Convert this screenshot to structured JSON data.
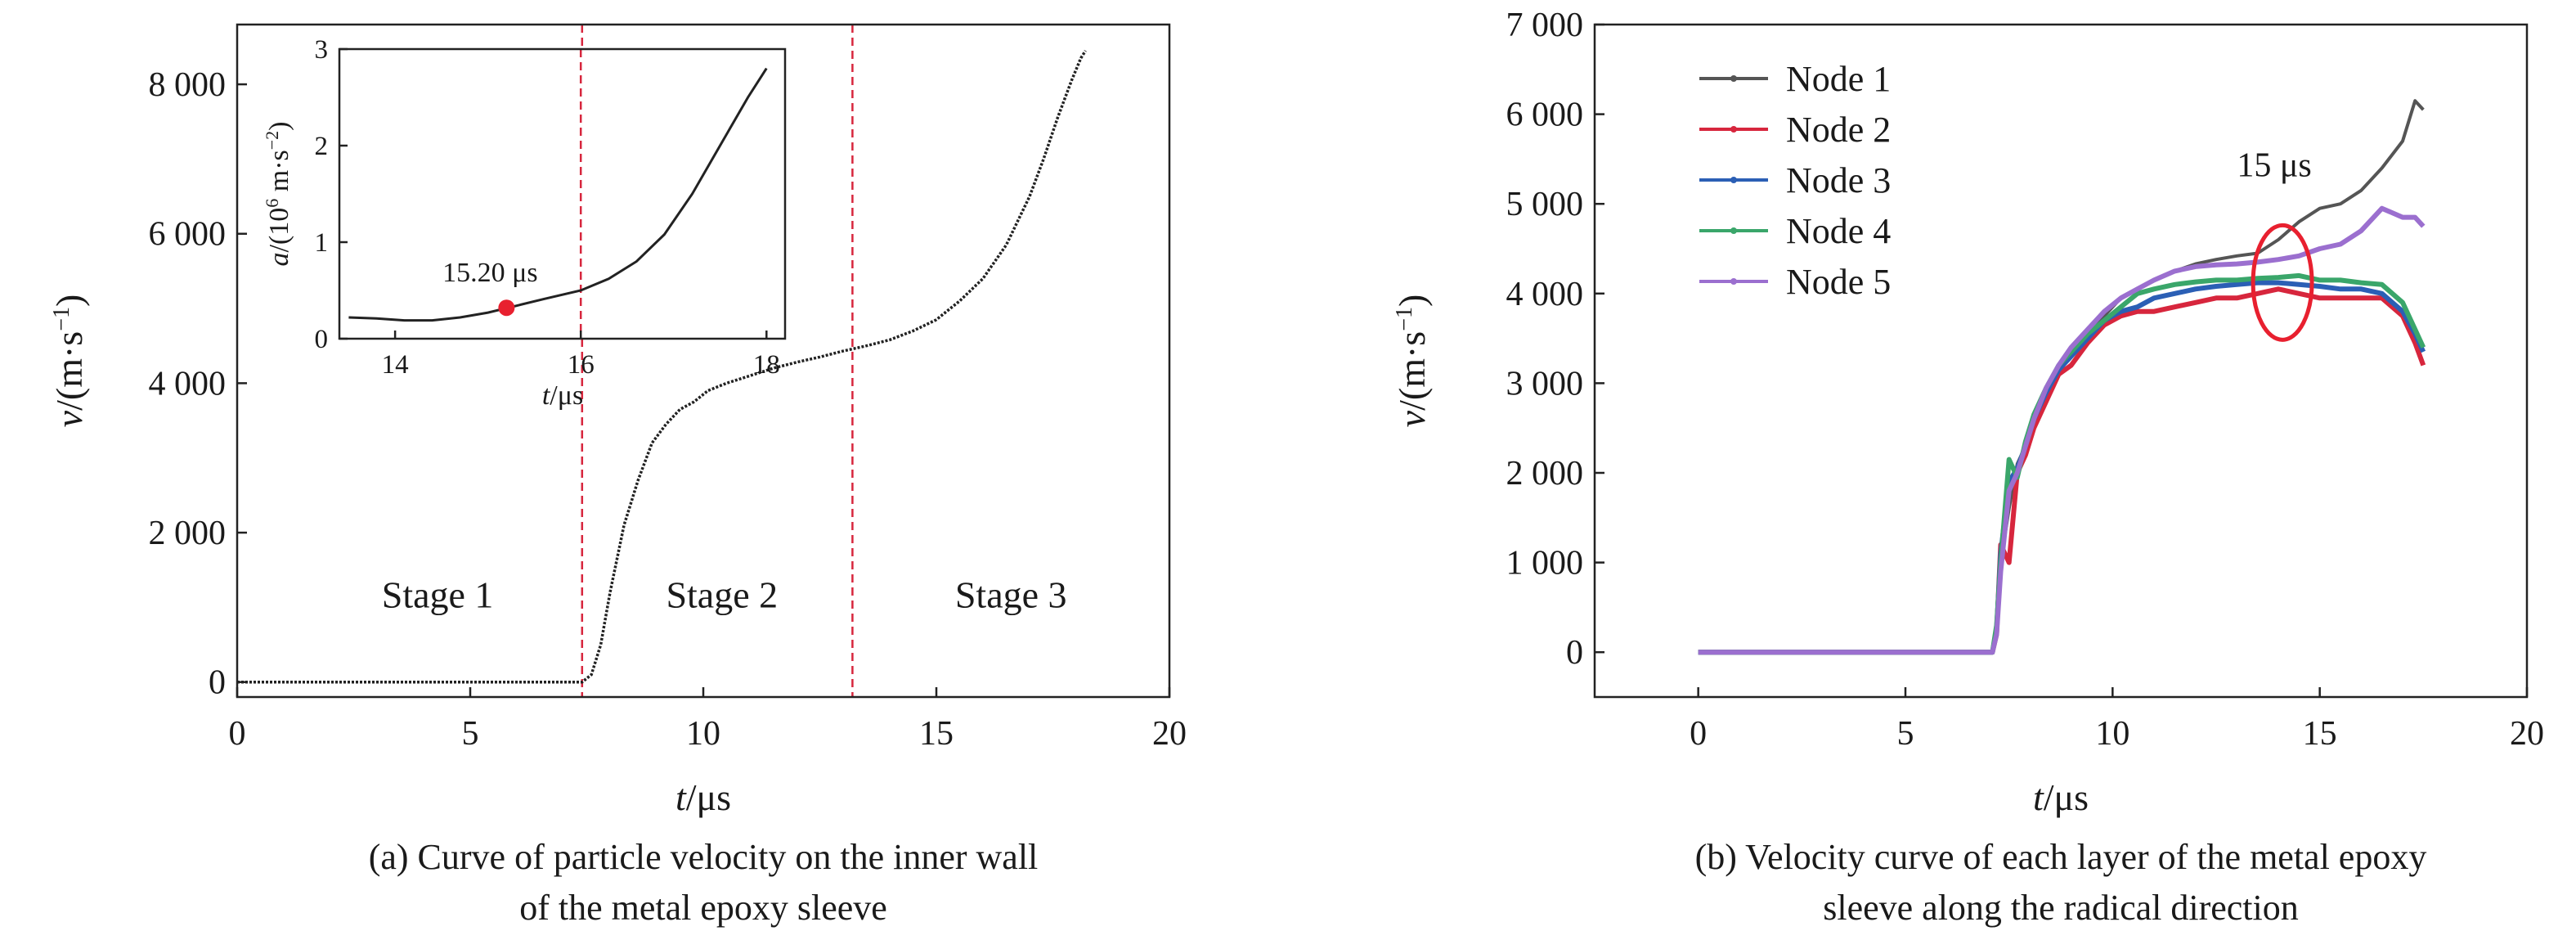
{
  "chart_data": [
    {
      "type": "line",
      "xlabel_italic": "t",
      "xlabel_unit": "/μs",
      "ylabel_italic": "v",
      "ylabel_unit": "/(m·s",
      "ylabel_sup": "−1",
      "ylabel_close": ")",
      "xlim": [
        0,
        20
      ],
      "ylim": [
        -200,
        8800
      ],
      "xticks": [
        0,
        5,
        10,
        15,
        20
      ],
      "xtick_labels": [
        "0",
        "5",
        "10",
        "15",
        "20"
      ],
      "yticks": [
        0,
        2000,
        4000,
        6000,
        8000
      ],
      "ytick_labels": [
        "0",
        "2 000",
        "4 000",
        "6 000",
        "8 000"
      ],
      "vlines": [
        7.4,
        13.2
      ],
      "stages": [
        {
          "label": "Stage 1",
          "x": 4.3,
          "y": 1000
        },
        {
          "label": "Stage 2",
          "x": 10.4,
          "y": 1000
        },
        {
          "label": "Stage 3",
          "x": 16.6,
          "y": 1000
        }
      ],
      "series": [
        {
          "color": "#222222",
          "x": [
            0,
            7.4,
            7.6,
            7.8,
            8.0,
            8.3,
            8.6,
            8.9,
            9.2,
            9.5,
            9.8,
            10.1,
            10.5,
            11.0,
            11.5,
            12.0,
            12.5,
            13.0,
            13.5,
            14.0,
            14.5,
            15.0,
            15.5,
            16.0,
            16.5,
            17.0,
            17.3,
            17.6,
            17.9,
            18.1,
            18.2
          ],
          "y": [
            0,
            0,
            100,
            500,
            1200,
            2100,
            2700,
            3200,
            3450,
            3650,
            3750,
            3900,
            4000,
            4100,
            4200,
            4280,
            4350,
            4430,
            4500,
            4580,
            4700,
            4850,
            5100,
            5400,
            5850,
            6500,
            7000,
            7550,
            8050,
            8350,
            8450
          ]
        }
      ],
      "caption": [
        "(a) Curve of particle velocity on the inner wall",
        "of the metal epoxy sleeve"
      ],
      "inset": {
        "xlabel_italic": "t",
        "xlabel_unit": "/μs",
        "ylabel_italic": "a",
        "ylabel_unit": "/(10",
        "ylabel_sup1": "6",
        "ylabel_mid": " m·s",
        "ylabel_sup2": "−2",
        "ylabel_close": ")",
        "xlim": [
          13.4,
          18.2
        ],
        "ylim": [
          0,
          3
        ],
        "xticks": [
          14,
          16,
          18
        ],
        "xtick_labels": [
          "14",
          "16",
          "18"
        ],
        "yticks": [
          0,
          1,
          2,
          3
        ],
        "ytick_labels": [
          "0",
          "1",
          "2",
          "3"
        ],
        "vline": 16,
        "marker": {
          "x": 15.2,
          "y": 0.32,
          "label": "15.20 μs"
        },
        "x": [
          13.5,
          13.8,
          14.1,
          14.4,
          14.7,
          15.0,
          15.3,
          15.6,
          16.0,
          16.3,
          16.6,
          16.9,
          17.2,
          17.5,
          17.8,
          18.0
        ],
        "y": [
          0.22,
          0.21,
          0.19,
          0.19,
          0.22,
          0.27,
          0.34,
          0.41,
          0.5,
          0.62,
          0.8,
          1.08,
          1.5,
          2.0,
          2.5,
          2.8
        ]
      }
    },
    {
      "type": "line",
      "xlabel_italic": "t",
      "xlabel_unit": "/μs",
      "ylabel_italic": "v",
      "ylabel_unit": "/(m·s",
      "ylabel_sup": "−1",
      "ylabel_close": ")",
      "xlim": [
        -2.5,
        20
      ],
      "ylim": [
        -500,
        7000
      ],
      "xticks": [
        0,
        5,
        10,
        15,
        20
      ],
      "xtick_labels": [
        "0",
        "5",
        "10",
        "15",
        "20"
      ],
      "yticks": [
        0,
        1000,
        2000,
        3000,
        4000,
        5000,
        6000,
        7000
      ],
      "ytick_labels": [
        "0",
        "1 000",
        "2 000",
        "3 000",
        "4 000",
        "5 000",
        "6 000",
        "7 000"
      ],
      "legend_position": "top-left",
      "annotation": {
        "label": "15 μs",
        "x": 14.1,
        "y": 4050
      },
      "series": [
        {
          "name": "Node 1",
          "color": "#555555",
          "x": [
            0,
            7.1,
            7.2,
            7.3,
            7.5,
            7.7,
            7.9,
            8.1,
            8.4,
            8.7,
            9.0,
            9.4,
            9.8,
            10.2,
            10.6,
            11.0,
            11.5,
            12.0,
            12.5,
            13.0,
            13.5,
            14.0,
            14.5,
            15.0,
            15.5,
            16.0,
            16.5,
            17.0,
            17.3,
            17.5
          ],
          "y": [
            0,
            0,
            300,
            1000,
            1600,
            2100,
            2300,
            2600,
            2900,
            3150,
            3350,
            3550,
            3750,
            3950,
            4050,
            4150,
            4250,
            4330,
            4380,
            4420,
            4450,
            4600,
            4800,
            4950,
            5000,
            5150,
            5400,
            5700,
            6150,
            6050
          ]
        },
        {
          "name": "Node 2",
          "color": "#d7263d",
          "x": [
            0,
            7.1,
            7.2,
            7.3,
            7.5,
            7.7,
            7.9,
            8.1,
            8.4,
            8.7,
            9.0,
            9.4,
            9.8,
            10.2,
            10.6,
            11.0,
            11.5,
            12.0,
            12.5,
            13.0,
            13.5,
            14.0,
            14.5,
            15.0,
            15.5,
            16.0,
            16.5,
            17.0,
            17.3,
            17.5
          ],
          "y": [
            0,
            0,
            200,
            1200,
            1000,
            2000,
            2200,
            2500,
            2800,
            3100,
            3200,
            3450,
            3650,
            3750,
            3800,
            3800,
            3850,
            3900,
            3950,
            3950,
            4000,
            4050,
            4000,
            3950,
            3950,
            3950,
            3950,
            3750,
            3450,
            3200
          ]
        },
        {
          "name": "Node 3",
          "color": "#2b5fb5",
          "x": [
            0,
            7.1,
            7.2,
            7.3,
            7.5,
            7.7,
            7.9,
            8.1,
            8.4,
            8.7,
            9.0,
            9.4,
            9.8,
            10.2,
            10.6,
            11.0,
            11.5,
            12.0,
            12.5,
            13.0,
            13.5,
            14.0,
            14.5,
            15.0,
            15.5,
            16.0,
            16.5,
            17.0,
            17.3,
            17.5
          ],
          "y": [
            0,
            0,
            250,
            1100,
            1900,
            2050,
            2300,
            2600,
            2900,
            3150,
            3300,
            3500,
            3700,
            3800,
            3850,
            3950,
            4000,
            4050,
            4080,
            4100,
            4120,
            4120,
            4100,
            4080,
            4050,
            4050,
            4000,
            3800,
            3550,
            3350
          ]
        },
        {
          "name": "Node 4",
          "color": "#3aa66a",
          "x": [
            0,
            7.1,
            7.2,
            7.3,
            7.5,
            7.7,
            7.9,
            8.1,
            8.4,
            8.7,
            9.0,
            9.4,
            9.8,
            10.2,
            10.6,
            11.0,
            11.5,
            12.0,
            12.5,
            13.0,
            13.5,
            14.0,
            14.5,
            15.0,
            15.5,
            16.0,
            16.5,
            17.0,
            17.3,
            17.5
          ],
          "y": [
            0,
            0,
            300,
            1000,
            2150,
            1950,
            2350,
            2650,
            2950,
            3200,
            3350,
            3550,
            3700,
            3850,
            4000,
            4050,
            4100,
            4130,
            4150,
            4150,
            4170,
            4180,
            4200,
            4150,
            4150,
            4120,
            4100,
            3900,
            3600,
            3400
          ]
        },
        {
          "name": "Node 5",
          "color": "#9b6fcf",
          "x": [
            0,
            7.1,
            7.2,
            7.3,
            7.5,
            7.7,
            7.9,
            8.1,
            8.4,
            8.7,
            9.0,
            9.4,
            9.8,
            10.2,
            10.6,
            11.0,
            11.5,
            12.0,
            12.5,
            13.0,
            13.5,
            14.0,
            14.5,
            15.0,
            15.5,
            16.0,
            16.5,
            17.0,
            17.3,
            17.5
          ],
          "y": [
            0,
            0,
            200,
            900,
            1800,
            2000,
            2300,
            2600,
            2950,
            3200,
            3400,
            3600,
            3800,
            3950,
            4050,
            4150,
            4250,
            4300,
            4320,
            4330,
            4350,
            4380,
            4420,
            4500,
            4550,
            4700,
            4950,
            4850,
            4850,
            4750
          ]
        }
      ],
      "caption": [
        "(b) Velocity curve of each layer of the metal epoxy",
        "sleeve along the radical direction"
      ]
    }
  ]
}
